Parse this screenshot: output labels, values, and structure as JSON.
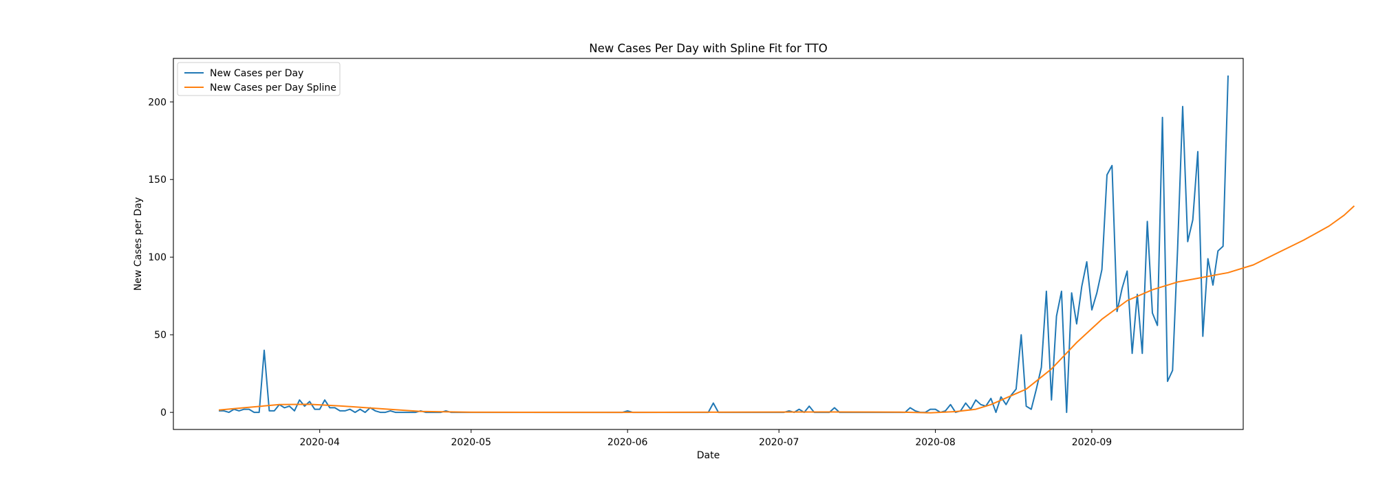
{
  "chart_data": {
    "type": "line",
    "title": "New Cases Per Day with Spline Fit for TTO",
    "xlabel": "Date",
    "ylabel": "New Cases per Day",
    "x_start": "2020-03-12",
    "x_end": "2020-09-19",
    "xlim": [
      "2020-03-03",
      "2020-10-01"
    ],
    "ylim": [
      -11,
      228
    ],
    "xticks": [
      "2020-04",
      "2020-05",
      "2020-06",
      "2020-07",
      "2020-08",
      "2020-09"
    ],
    "yticks": [
      0,
      50,
      100,
      150,
      200
    ],
    "grid": false,
    "legend_placement": "top-left",
    "series": [
      {
        "name": "New Cases per Day",
        "color": "#1f77b4",
        "values": [
          1,
          1,
          0,
          2,
          1,
          2,
          2,
          0,
          0,
          40,
          1,
          1,
          5,
          3,
          4,
          1,
          8,
          4,
          7,
          2,
          2,
          8,
          3,
          3,
          1,
          1,
          2,
          0,
          2,
          0,
          3,
          1,
          0,
          0,
          1,
          0,
          0,
          0,
          0,
          0,
          1,
          0,
          0,
          0,
          0,
          1,
          0,
          0,
          0,
          0,
          0,
          0,
          0,
          0,
          0,
          0,
          0,
          0,
          0,
          0,
          0,
          0,
          0,
          0,
          0,
          0,
          0,
          0,
          0,
          0,
          0,
          0,
          0,
          0,
          0,
          0,
          0,
          0,
          0,
          0,
          0,
          1,
          0,
          0,
          0,
          0,
          0,
          0,
          0,
          0,
          0,
          0,
          0,
          0,
          0,
          0,
          0,
          0,
          6,
          0,
          0,
          0,
          0,
          0,
          0,
          0,
          0,
          0,
          0,
          0,
          0,
          0,
          0,
          1,
          0,
          2,
          0,
          4,
          0,
          0,
          0,
          0,
          3,
          0,
          0,
          0,
          0,
          0,
          0,
          0,
          0,
          0,
          0,
          0,
          0,
          0,
          0,
          3,
          1,
          0,
          0,
          2,
          2,
          0,
          1,
          5,
          0,
          1,
          6,
          2,
          8,
          5,
          4,
          9,
          0,
          10,
          5,
          11,
          15,
          50,
          4,
          2,
          15,
          29,
          78,
          8,
          62,
          78,
          0,
          77,
          57,
          81,
          97,
          66,
          77,
          92,
          153,
          159,
          65,
          80,
          91,
          38,
          76,
          38,
          123,
          64,
          56,
          190,
          20,
          27,
          105,
          197,
          110,
          124,
          168,
          49,
          99,
          82,
          104,
          107,
          217
        ]
      },
      {
        "name": "New Cases per Day Spline",
        "color": "#ff7f0e",
        "points": [
          [
            0,
            1.5
          ],
          [
            5,
            3
          ],
          [
            12,
            5
          ],
          [
            18,
            5.2
          ],
          [
            24,
            4.2
          ],
          [
            30,
            2.8
          ],
          [
            40,
            0.6
          ],
          [
            50,
            0.1
          ],
          [
            80,
            0
          ],
          [
            120,
            0.3
          ],
          [
            135,
            0.2
          ],
          [
            141,
            -0.3
          ],
          [
            146,
            0.5
          ],
          [
            150,
            2
          ],
          [
            153,
            5
          ],
          [
            160,
            15
          ],
          [
            165,
            28
          ],
          [
            170,
            45
          ],
          [
            175,
            60
          ],
          [
            180,
            72
          ],
          [
            185,
            79
          ],
          [
            190,
            84
          ],
          [
            195,
            87
          ],
          [
            200,
            90
          ],
          [
            205,
            95
          ],
          [
            210,
            103
          ],
          [
            215,
            111
          ],
          [
            220,
            120
          ],
          [
            223,
            127
          ],
          [
            225,
            133
          ]
        ]
      }
    ]
  }
}
